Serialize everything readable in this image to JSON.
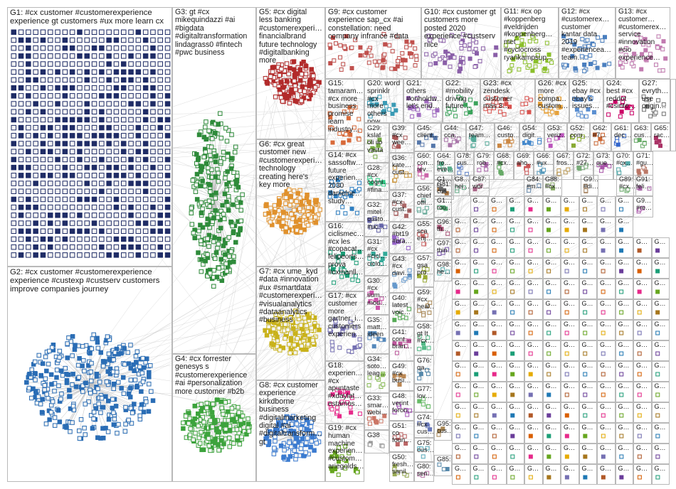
{
  "groups": [
    {
      "id": "G1",
      "label": "G1: #cx customer #customerexperience\nexperience gt customers #ux more learn cx"
    },
    {
      "id": "G2",
      "label": "G2: #cx customer #customerexperience\nexperience #custexp #custserv customers\nimprove companies journey"
    },
    {
      "id": "G3",
      "label": "G3: gt #cx\nmikequindazzi #ai\n#bigdata\n#digitaltransformation\nlindagrass0 #fintech\n#pwc business"
    },
    {
      "id": "G4",
      "label": "G4: #cx forrester\ngenesys s\n#customerexperience\n#ai #personalization\nmore customer #b2b"
    },
    {
      "id": "G5",
      "label": "G5: #cx digital\nless banking\n#customerexperi…\nfinancialbrand\nfuture technology\n#digitalbanking\nmore"
    },
    {
      "id": "G6",
      "label": "G6: #cx great\ncustomer new\n#customerexperi…\ntechnology\ncreating here's\nkey more"
    },
    {
      "id": "G7",
      "label": "G7: #cx ume_kyd\n#data #innovation\n#ux #smartdata\n#customerexperi…\n#visualanalytics\n#dataanalytics\n#business"
    },
    {
      "id": "G8",
      "label": "G8: #cx customer\nexperience\nkirkdborne\nbusiness\n#digitalmarketing\ndigital #ai\n#digitaltransform…\ngt"
    },
    {
      "id": "G9",
      "label": "G9: #cx customer\nexperience sap_cx #ai\nconstellation: need\ncompany infrance #data"
    },
    {
      "id": "G10",
      "label": "G10: #cx customer gt\ncustomers more\nposted 2020\nexperience #custserv\nnice"
    },
    {
      "id": "G11",
      "label": "G11: #cx op\n#koppenberg\n#veldrijden\n#koppenberg…\nmet\n#cyclocross\nryankampsup…"
    },
    {
      "id": "G12",
      "label": "G12: #cx\n#customerex…\ncustomer\nkantar data\n2019\n#experiencea…\nteam…"
    },
    {
      "id": "G13",
      "label": "G13: #cx\ncustomer…\n#customerex…\nservice\n#innovation\n#cio\nexperience…"
    },
    {
      "id": "G14",
      "label": "G14: #cx\nsassoftw…\nfuture\nexperien…\n2030\ndanielne…\nstudy…"
    },
    {
      "id": "G15",
      "label": "G15:\ntamaram…\n#cx more\nbusiness\npromise\nlearn\nindustry…"
    },
    {
      "id": "G16",
      "label": "G16:\nciclismec…\n#cx les\n#copacat…\nfelipeorts…\nprova\n#cxmanll…"
    },
    {
      "id": "G17",
      "label": "G17: #cx\ncustomer\nmore\ngartner_i…\ncustomers\nexperien…"
    },
    {
      "id": "G18",
      "label": "G18:\nexperien…\n#cx\napuntaste\n#xdaylat…\nestamos…"
    },
    {
      "id": "G19",
      "label": "G19: #cx\nhuman\nmachine\nexperien…\n#custom…\nariegolds…"
    },
    {
      "id": "G20",
      "label": "G20: word\nsprinklr #cx\nmore others\nnow…"
    },
    {
      "id": "G21",
      "label": "G21:\nothers\n#onholdw…\nlet's end…"
    },
    {
      "id": "G22",
      "label": "G22:\n#mobility\ndriving\nfuture…"
    },
    {
      "id": "G23",
      "label": "G23: #cx\nzendesk\ncustomer\nmás 3…"
    },
    {
      "id": "G24",
      "label": "G24:\nbest #cx\nreddot\n#csinte…"
    },
    {
      "id": "G25",
      "label": "G25:\nebay #cx\nebay's\nissues…"
    },
    {
      "id": "G26",
      "label": "G26: #cx\nmore\ncompa…\ncustom…"
    },
    {
      "id": "G27",
      "label": "G27:\nevryth…\nuse\norigin…"
    },
    {
      "id": "G28",
      "label": "G28:\n#cx\ncogni…\n#fina…"
    },
    {
      "id": "G29",
      "label": "G29:\nkslaf\noli ilo\nvasta"
    },
    {
      "id": "G30",
      "label": "G30:\n#cx\nsum…\nmod…"
    },
    {
      "id": "G31",
      "label": "G31:\n#cx\n#cicl…\nciclo…"
    },
    {
      "id": "G32",
      "label": "G32:\nmitel\ncusto…\n#uc…"
    },
    {
      "id": "G33",
      "label": "G33:\nsmar…\nwebi…"
    },
    {
      "id": "G34",
      "label": "G34:\nsoto…\nleag…"
    },
    {
      "id": "G35",
      "label": "G35:\nmatt…\nideen"
    },
    {
      "id": "G36",
      "label": "G36:\nkate…\ncust…"
    },
    {
      "id": "G37",
      "label": "G37:\n#cx\ncust…"
    },
    {
      "id": "G38",
      "label": "G38"
    },
    {
      "id": "G39",
      "label": "G39:\n#cx\nwee…"
    },
    {
      "id": "G40",
      "label": "G40:\nlatest\nvoic…"
    },
    {
      "id": "G41",
      "label": "G41:\ncont…\nbran…"
    },
    {
      "id": "G42",
      "label": "G42:\n#bt19\n#bra…"
    },
    {
      "id": "G43",
      "label": "G43:\n#cx\ndavi…"
    },
    {
      "id": "G44",
      "label": "G44:\ncca…"
    },
    {
      "id": "G45",
      "label": "G45:\nclient…"
    },
    {
      "id": "G46",
      "label": "G46:\ncusto…"
    },
    {
      "id": "G47",
      "label": "G47:\nteam…"
    },
    {
      "id": "G48",
      "label": "G48:\nverint\nforon…"
    },
    {
      "id": "G49",
      "label": "G49:\n#cx\nbusi…"
    },
    {
      "id": "G50",
      "label": "G50:\nfresh…\nsanil…"
    },
    {
      "id": "G51",
      "label": "G51:\nco\nfoun…"
    },
    {
      "id": "G52",
      "label": "G52:\ncom…"
    },
    {
      "id": "G53",
      "label": "G53:\nveriz…"
    },
    {
      "id": "G54",
      "label": "G54:\ndigit…"
    },
    {
      "id": "G55",
      "label": "G55:\nsca\nenj…"
    },
    {
      "id": "G56",
      "label": "G56:\nchief\noffi…"
    },
    {
      "id": "G57",
      "label": "G57:\ngsa\npro…"
    },
    {
      "id": "G58",
      "label": "G58:\ngt It\n#cx…"
    },
    {
      "id": "G59",
      "label": "G59:\n#cx\nheal…"
    },
    {
      "id": "G60",
      "label": "G60:\ncon…\nrev…"
    },
    {
      "id": "G61",
      "label": "G61:\ndec…"
    },
    {
      "id": "G62",
      "label": "G62:\n#7…"
    },
    {
      "id": "G63",
      "label": "G63:\ncus…"
    },
    {
      "id": "G64",
      "label": "G64:\nfro…\neve…"
    },
    {
      "id": "G65",
      "label": "G65:\nrac…"
    },
    {
      "id": "G66",
      "label": "G66:\n#ux…"
    },
    {
      "id": "G67",
      "label": "G67:\nfros…"
    },
    {
      "id": "G68",
      "label": "G68:\n#cx…"
    },
    {
      "id": "G69",
      "label": "G69:\naho…"
    },
    {
      "id": "G70",
      "label": "G70:\n#cx…"
    },
    {
      "id": "G71",
      "label": "G71:\n#gu…"
    },
    {
      "id": "G72",
      "label": "G72:\n#27…"
    },
    {
      "id": "G73",
      "label": "G73:\nque…"
    },
    {
      "id": "G74",
      "label": "G74:\n#cx\ncus…"
    },
    {
      "id": "G75",
      "label": "G75:\ncus…"
    },
    {
      "id": "G76",
      "label": "G76:\nqa…"
    },
    {
      "id": "G77",
      "label": "G77:\nlov…"
    },
    {
      "id": "G78",
      "label": "G78:\ncus…"
    },
    {
      "id": "G79",
      "label": "G79:\nrob…"
    },
    {
      "id": "G80",
      "label": "G80:\nsen…"
    },
    {
      "id": "G81",
      "label": "G81:\ncus…"
    },
    {
      "id": "G84",
      "label": "G84:\n#m…"
    },
    {
      "id": "G85",
      "label": "G85:"
    },
    {
      "id": "G87",
      "label": "G87:\nwor…"
    },
    {
      "id": "G88",
      "label": "G88:\n#cx…"
    },
    {
      "id": "G89",
      "label": "G89:\n#cx…"
    },
    {
      "id": "G91",
      "label": "G91:\nfeli…"
    },
    {
      "id": "G95",
      "label": "G95:\ncus…"
    },
    {
      "id": "G96",
      "label": "G96:\nth…"
    },
    {
      "id": "G97",
      "label": "G97:\nthin…"
    },
    {
      "id": "G98",
      "label": "G98:\nhe…"
    },
    {
      "id": "G9x",
      "label": "G9…\n#di…"
    },
    {
      "id": "G1x",
      "label": "G1…"
    },
    {
      "id": "G8x",
      "label": "G8…\nhel…"
    },
    {
      "id": "G9y",
      "label": "G9…\n#re…"
    },
    {
      "id": "G1y",
      "label": "G1…\nrou…"
    }
  ],
  "small_labels": [
    "G…",
    "G…",
    "G…",
    "G…",
    "G…",
    "G…",
    "G…",
    "G…",
    "G…",
    "G…",
    "G…",
    "G…"
  ],
  "colors": {
    "box_border": "#b9b9b9",
    "edge": "#bdbdbd",
    "background": "#ffffff",
    "label_text": "#1a1a1a",
    "g1_node": "#1f2c66",
    "g2_node": "#2a6db5",
    "g3_node": "#2e8b3a",
    "g4_node": "#3ca33c",
    "g5_node": "#b22a2a",
    "g6_node": "#e0912c",
    "g7_node": "#c9b21b",
    "g8_node": "#3b7bd0",
    "small_nodes": [
      "#6a3d9a",
      "#d95f02",
      "#1b9e77",
      "#e7298a",
      "#66a61e",
      "#e6ab02",
      "#a6761d",
      "#7570b3",
      "#1f78b4",
      "#b15928"
    ]
  }
}
